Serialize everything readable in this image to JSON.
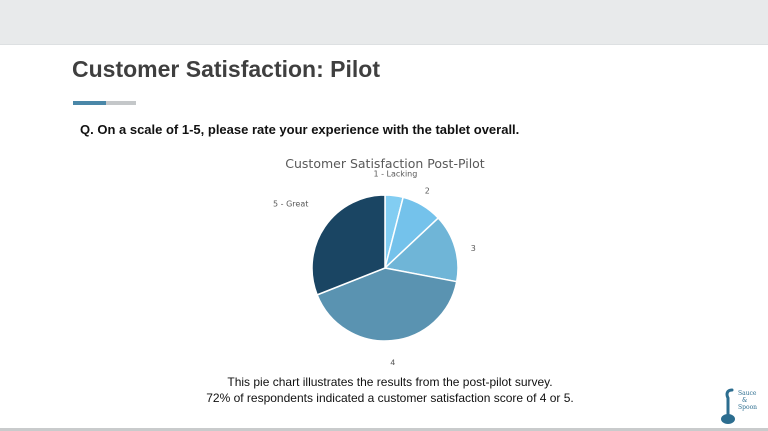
{
  "slide": {
    "title": "Customer Satisfaction: Pilot",
    "question": "Q. On a scale of 1-5, please rate your experience with the tablet overall.",
    "caption_line1": "This pie chart illustrates the results from the post-pilot survey.",
    "caption_line2": "72% of respondents indicated a customer satisfaction score of 4 or 5."
  },
  "logo": {
    "icon": "spoon-icon",
    "line1": "Sauce",
    "line2": "&",
    "line3": "Spoon"
  },
  "colors": {
    "title": "#3f3f3f",
    "accent": "#4a87a8"
  },
  "chart_data": {
    "type": "pie",
    "title": "Customer Satisfaction Post-Pilot",
    "categories": [
      "1 - Lacking",
      "2",
      "3",
      "4",
      "5 - Great"
    ],
    "values": [
      4,
      9,
      15,
      41,
      31
    ],
    "colors": [
      "#82cdf2",
      "#74c2eb",
      "#6fb5d7",
      "#5a93b1",
      "#1a4563"
    ],
    "start_angle_deg": 0,
    "direction": "clockwise",
    "legend": "none"
  }
}
